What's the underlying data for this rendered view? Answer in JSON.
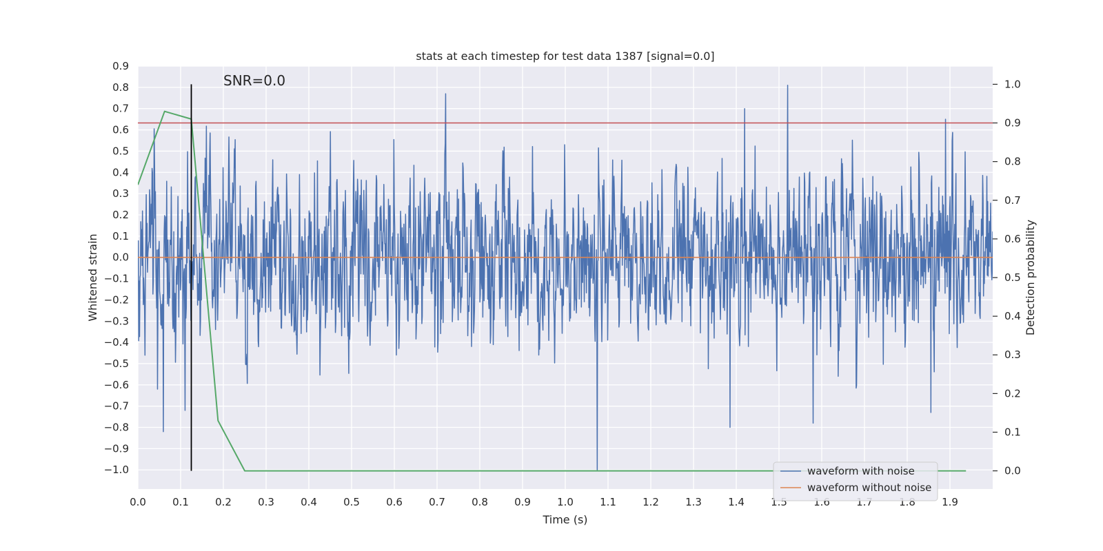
{
  "chart_data": {
    "type": "line",
    "title": "stats at each timestep for test data 1387 [signal=0.0]",
    "annotation": "SNR=0.0",
    "xlabel": "Time (s)",
    "ylabel_left": "Whitened strain",
    "ylabel_right": "Detection probability",
    "xlim": [
      0.0,
      2.0
    ],
    "ylim_left": [
      -1.09,
      0.9
    ],
    "ylim_right": [
      -0.047,
      1.047
    ],
    "xticks": [
      "0.0",
      "0.1",
      "0.2",
      "0.3",
      "0.4",
      "0.5",
      "0.6",
      "0.7",
      "0.8",
      "0.9",
      "1.0",
      "1.1",
      "1.2",
      "1.3",
      "1.4",
      "1.5",
      "1.6",
      "1.7",
      "1.8",
      "1.9"
    ],
    "yticks_left": [
      "0.9",
      "0.8",
      "0.7",
      "0.6",
      "0.5",
      "0.4",
      "0.3",
      "0.2",
      "0.1",
      "0.0",
      "−0.1",
      "−0.2",
      "−0.3",
      "−0.4",
      "−0.5",
      "−0.6",
      "−0.7",
      "−0.8",
      "−0.9",
      "−1.0"
    ],
    "yticks_right": [
      "1.0",
      "0.9",
      "0.8",
      "0.7",
      "0.6",
      "0.5",
      "0.4",
      "0.3",
      "0.2",
      "0.1",
      "0.0"
    ],
    "grid": true,
    "legend_placement": "lower-right",
    "colors": {
      "background": "#eaeaf2",
      "grid": "#ffffff",
      "noisy": "#4c72b0",
      "clean": "#dd8452",
      "probability": "#55a868",
      "threshold": "#c44e52",
      "marker": "#000000"
    },
    "series": [
      {
        "name": "waveform with noise",
        "axis": "left",
        "generated": true,
        "x_range": [
          0.0,
          2.0
        ],
        "amplitude_std": 0.2,
        "spikes": [
          {
            "x": 0.06,
            "y": -0.82
          },
          {
            "x": 0.11,
            "y": -0.72
          },
          {
            "x": 0.72,
            "y": 0.77
          },
          {
            "x": 1.075,
            "y": -1.0
          },
          {
            "x": 1.385,
            "y": -0.8
          },
          {
            "x": 1.42,
            "y": 0.7
          },
          {
            "x": 1.52,
            "y": 0.81
          },
          {
            "x": 1.58,
            "y": -0.78
          },
          {
            "x": 1.855,
            "y": -0.73
          },
          {
            "x": 1.89,
            "y": 0.65
          }
        ]
      },
      {
        "name": "waveform without noise",
        "axis": "left",
        "x": [
          0.0,
          2.0
        ],
        "y": [
          0.0,
          0.0
        ]
      },
      {
        "axis": "right",
        "x": [
          0.0,
          0.0625,
          0.125,
          0.1875,
          0.25,
          0.5,
          1.0,
          1.5,
          1.9375
        ],
        "y": [
          0.74,
          0.93,
          0.91,
          0.13,
          0.0,
          0.0,
          0.0,
          0.0,
          0.0
        ]
      }
    ],
    "threshold_line": {
      "axis": "right",
      "y": 0.9
    },
    "marker_line": {
      "x": 0.125,
      "y_range_right": [
        0.0,
        1.0
      ]
    }
  }
}
